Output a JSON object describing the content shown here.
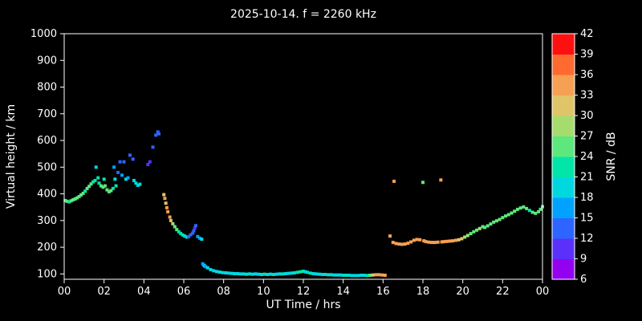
{
  "chart_data": {
    "type": "scatter",
    "title": "2025-10-14. f = 2260 kHz",
    "xlabel": "UT Time / hrs",
    "ylabel": "Virtual height / km",
    "colorbar_label": "SNR / dB",
    "background": "#000000",
    "axis_color": "#ffffff",
    "xlim": [
      0,
      24
    ],
    "ylim": [
      80,
      1000
    ],
    "xticks": [
      0,
      2,
      4,
      6,
      8,
      10,
      12,
      14,
      16,
      18,
      20,
      22,
      24
    ],
    "xtick_labels": [
      "00",
      "02",
      "04",
      "06",
      "08",
      "10",
      "12",
      "14",
      "16",
      "18",
      "20",
      "22",
      "00"
    ],
    "yticks": [
      100,
      200,
      300,
      400,
      500,
      600,
      700,
      800,
      900,
      1000
    ],
    "colorbar": {
      "min": 6,
      "max": 42,
      "step": 3,
      "tick_labels": [
        "6",
        "9",
        "12",
        "15",
        "18",
        "21",
        "24",
        "27",
        "30",
        "33",
        "36",
        "39",
        "42"
      ],
      "band_colors": [
        "#9400f0",
        "#5a30fa",
        "#2e64ff",
        "#00a2ff",
        "#00d8e0",
        "#00e6a8",
        "#5ce87c",
        "#a6dc6e",
        "#dfc468",
        "#f5a052",
        "#ff6a30",
        "#ff1010"
      ]
    },
    "points": [
      [
        0.05,
        375,
        24
      ],
      [
        0.15,
        372,
        25
      ],
      [
        0.25,
        370,
        23
      ],
      [
        0.35,
        374,
        24
      ],
      [
        0.45,
        378,
        25
      ],
      [
        0.55,
        381,
        24
      ],
      [
        0.65,
        385,
        26
      ],
      [
        0.75,
        390,
        24
      ],
      [
        0.85,
        396,
        25
      ],
      [
        0.95,
        402,
        24
      ],
      [
        1.05,
        410,
        23
      ],
      [
        1.15,
        420,
        24
      ],
      [
        1.25,
        428,
        25
      ],
      [
        1.35,
        437,
        24
      ],
      [
        1.45,
        445,
        22
      ],
      [
        1.55,
        450,
        21
      ],
      [
        1.6,
        500,
        18
      ],
      [
        1.7,
        460,
        21
      ],
      [
        1.75,
        440,
        22
      ],
      [
        1.85,
        430,
        24
      ],
      [
        1.95,
        425,
        24
      ],
      [
        2.0,
        455,
        21
      ],
      [
        2.05,
        430,
        24
      ],
      [
        2.15,
        415,
        25
      ],
      [
        2.25,
        408,
        24
      ],
      [
        2.35,
        412,
        24
      ],
      [
        2.45,
        420,
        23
      ],
      [
        2.5,
        500,
        15
      ],
      [
        2.55,
        455,
        20
      ],
      [
        2.6,
        430,
        22
      ],
      [
        2.7,
        480,
        14
      ],
      [
        2.8,
        520,
        13
      ],
      [
        2.9,
        470,
        16
      ],
      [
        3.0,
        520,
        13
      ],
      [
        3.1,
        455,
        18
      ],
      [
        3.2,
        460,
        17
      ],
      [
        3.3,
        545,
        12
      ],
      [
        3.45,
        530,
        13
      ],
      [
        3.5,
        450,
        18
      ],
      [
        3.6,
        440,
        19
      ],
      [
        3.7,
        432,
        20
      ],
      [
        3.8,
        436,
        19
      ],
      [
        4.2,
        510,
        9
      ],
      [
        4.3,
        520,
        11
      ],
      [
        4.45,
        575,
        12
      ],
      [
        4.6,
        620,
        13
      ],
      [
        4.7,
        632,
        13
      ],
      [
        4.75,
        625,
        12
      ],
      [
        5.0,
        397,
        32
      ],
      [
        5.05,
        383,
        33
      ],
      [
        5.1,
        365,
        31
      ],
      [
        5.15,
        348,
        33
      ],
      [
        5.2,
        333,
        34
      ],
      [
        5.3,
        313,
        33
      ],
      [
        5.35,
        300,
        30
      ],
      [
        5.45,
        288,
        27
      ],
      [
        5.55,
        277,
        25
      ],
      [
        5.65,
        266,
        24
      ],
      [
        5.75,
        258,
        23
      ],
      [
        5.85,
        251,
        22
      ],
      [
        5.95,
        246,
        21
      ],
      [
        6.05,
        242,
        20
      ],
      [
        6.15,
        238,
        19
      ],
      [
        6.25,
        240,
        14
      ],
      [
        6.35,
        247,
        13
      ],
      [
        6.45,
        253,
        12
      ],
      [
        6.5,
        262,
        12
      ],
      [
        6.55,
        272,
        11
      ],
      [
        6.6,
        281,
        12
      ],
      [
        6.7,
        240,
        15
      ],
      [
        6.8,
        234,
        17
      ],
      [
        6.9,
        230,
        18
      ],
      [
        6.95,
        138,
        16
      ],
      [
        7.0,
        133,
        17
      ],
      [
        7.05,
        130,
        18
      ],
      [
        7.1,
        127,
        17
      ],
      [
        7.2,
        123,
        18
      ],
      [
        7.35,
        116,
        18
      ],
      [
        7.5,
        112,
        19
      ],
      [
        7.65,
        109,
        18
      ],
      [
        7.8,
        107,
        20
      ],
      [
        7.95,
        105,
        19
      ],
      [
        8.1,
        104,
        18
      ],
      [
        8.25,
        103,
        19
      ],
      [
        8.4,
        102,
        20
      ],
      [
        8.55,
        101,
        19
      ],
      [
        8.7,
        101,
        18
      ],
      [
        8.85,
        100,
        20
      ],
      [
        9.0,
        100,
        19
      ],
      [
        9.15,
        99,
        21
      ],
      [
        9.3,
        100,
        20
      ],
      [
        9.45,
        99,
        19
      ],
      [
        9.6,
        100,
        18
      ],
      [
        9.75,
        99,
        20
      ],
      [
        9.9,
        98,
        19
      ],
      [
        10.05,
        99,
        21
      ],
      [
        10.2,
        98,
        20
      ],
      [
        10.35,
        99,
        19
      ],
      [
        10.5,
        98,
        18
      ],
      [
        10.65,
        99,
        20
      ],
      [
        10.8,
        100,
        19
      ],
      [
        10.95,
        100,
        21
      ],
      [
        11.1,
        101,
        20
      ],
      [
        11.25,
        102,
        19
      ],
      [
        11.4,
        103,
        18
      ],
      [
        11.55,
        104,
        20
      ],
      [
        11.7,
        106,
        21
      ],
      [
        11.85,
        108,
        22
      ],
      [
        12.0,
        110,
        21
      ],
      [
        12.1,
        108,
        20
      ],
      [
        12.2,
        106,
        19
      ],
      [
        12.35,
        103,
        21
      ],
      [
        12.5,
        101,
        20
      ],
      [
        12.65,
        100,
        19
      ],
      [
        12.8,
        99,
        18
      ],
      [
        12.95,
        98,
        20
      ],
      [
        13.1,
        98,
        19
      ],
      [
        13.25,
        97,
        21
      ],
      [
        13.4,
        97,
        20
      ],
      [
        13.55,
        96,
        19
      ],
      [
        13.7,
        96,
        18
      ],
      [
        13.85,
        96,
        20
      ],
      [
        14.0,
        95,
        19
      ],
      [
        14.15,
        95,
        21
      ],
      [
        14.3,
        95,
        20
      ],
      [
        14.45,
        94,
        19
      ],
      [
        14.6,
        94,
        18
      ],
      [
        14.75,
        94,
        20
      ],
      [
        14.9,
        95,
        19
      ],
      [
        15.05,
        95,
        20
      ],
      [
        15.2,
        94,
        21
      ],
      [
        15.35,
        95,
        26
      ],
      [
        15.5,
        96,
        30
      ],
      [
        15.65,
        97,
        33
      ],
      [
        15.8,
        97,
        34
      ],
      [
        15.95,
        96,
        35
      ],
      [
        16.1,
        95,
        34
      ],
      [
        16.55,
        447,
        33
      ],
      [
        18.0,
        443,
        24
      ],
      [
        18.9,
        452,
        34
      ],
      [
        16.35,
        242,
        33
      ],
      [
        16.5,
        218,
        34
      ],
      [
        16.65,
        214,
        33
      ],
      [
        16.8,
        212,
        35
      ],
      [
        16.95,
        211,
        34
      ],
      [
        17.1,
        212,
        33
      ],
      [
        17.25,
        215,
        34
      ],
      [
        17.4,
        220,
        33
      ],
      [
        17.55,
        226,
        35
      ],
      [
        17.7,
        229,
        34
      ],
      [
        17.85,
        228,
        33
      ],
      [
        18.05,
        224,
        34
      ],
      [
        18.15,
        221,
        33
      ],
      [
        18.3,
        219,
        35
      ],
      [
        18.45,
        218,
        34
      ],
      [
        18.6,
        218,
        33
      ],
      [
        18.75,
        219,
        34
      ],
      [
        18.95,
        220,
        33
      ],
      [
        19.05,
        221,
        35
      ],
      [
        19.2,
        222,
        34
      ],
      [
        19.35,
        223,
        33
      ],
      [
        19.5,
        224,
        34
      ],
      [
        19.65,
        226,
        33
      ],
      [
        19.8,
        228,
        32
      ],
      [
        19.95,
        232,
        31
      ],
      [
        20.1,
        238,
        28
      ],
      [
        20.25,
        244,
        27
      ],
      [
        20.4,
        251,
        26
      ],
      [
        20.55,
        258,
        25
      ],
      [
        20.7,
        264,
        26
      ],
      [
        20.85,
        270,
        27
      ],
      [
        21.0,
        277,
        25
      ],
      [
        21.1,
        274,
        26
      ],
      [
        21.25,
        280,
        24
      ],
      [
        21.4,
        287,
        25
      ],
      [
        21.55,
        294,
        26
      ],
      [
        21.7,
        299,
        25
      ],
      [
        21.85,
        304,
        24
      ],
      [
        22.0,
        311,
        25
      ],
      [
        22.15,
        317,
        24
      ],
      [
        22.3,
        322,
        25
      ],
      [
        22.45,
        328,
        24
      ],
      [
        22.6,
        335,
        26
      ],
      [
        22.75,
        342,
        25
      ],
      [
        22.9,
        347,
        24
      ],
      [
        23.05,
        351,
        25
      ],
      [
        23.2,
        345,
        24
      ],
      [
        23.35,
        338,
        23
      ],
      [
        23.5,
        331,
        24
      ],
      [
        23.65,
        327,
        25
      ],
      [
        23.8,
        333,
        24
      ],
      [
        23.9,
        342,
        26
      ],
      [
        24.0,
        352,
        25
      ]
    ]
  }
}
